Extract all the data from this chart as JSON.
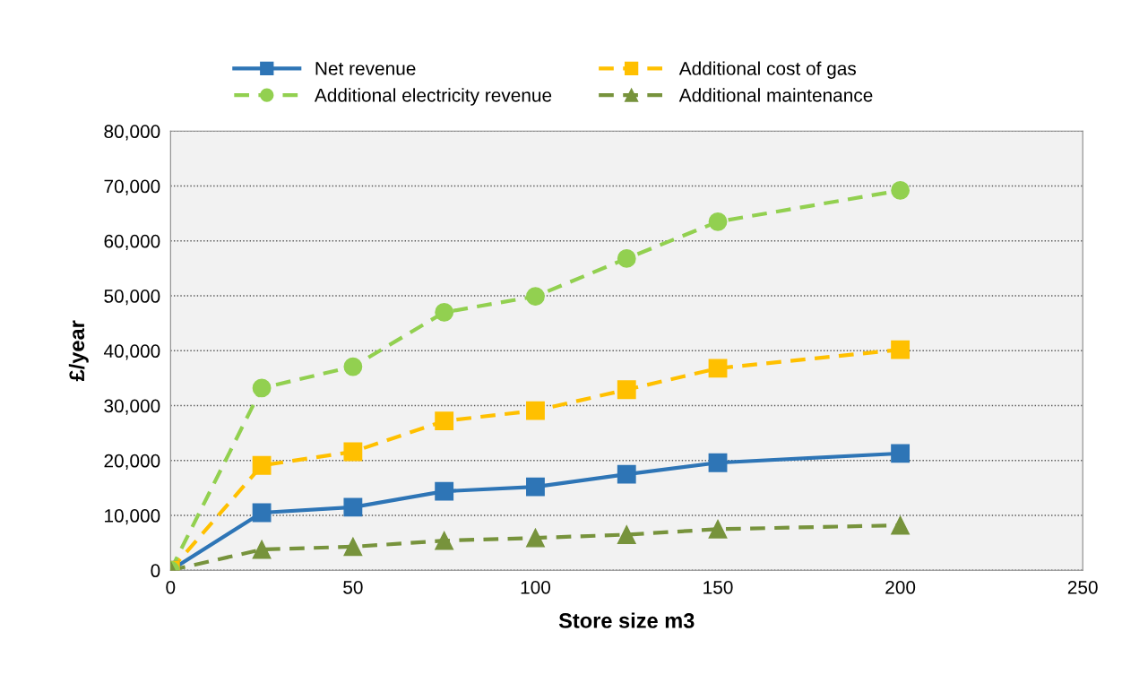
{
  "chart_data": {
    "type": "line",
    "xlabel": "Store size m3",
    "ylabel": "£/year",
    "xlim": [
      0,
      250
    ],
    "xticks": [
      0,
      50,
      100,
      150,
      200,
      250
    ],
    "ylim": [
      0,
      80000
    ],
    "yticks": [
      {
        "value": 0,
        "label": "0"
      },
      {
        "value": 10000,
        "label": "10,000"
      },
      {
        "value": 20000,
        "label": "20,000"
      },
      {
        "value": 30000,
        "label": "30,000"
      },
      {
        "value": 40000,
        "label": "40,000"
      },
      {
        "value": 50000,
        "label": "50,000"
      },
      {
        "value": 60000,
        "label": "60,000"
      },
      {
        "value": 70000,
        "label": "70,000"
      },
      {
        "value": 80000,
        "label": "80,000"
      }
    ],
    "grid": "y",
    "legend": "top",
    "x": [
      0,
      25,
      50,
      75,
      100,
      125,
      150,
      200
    ],
    "series": [
      {
        "name": "Net revenue",
        "color": "#2e75b6",
        "marker": "square",
        "line_style": "solid",
        "values": [
          0,
          10500,
          11500,
          14400,
          15200,
          17500,
          19600,
          21300
        ]
      },
      {
        "name": "Additional cost of gas",
        "color": "#ffc000",
        "marker": "square",
        "line_style": "dashed",
        "values": [
          0,
          19100,
          21600,
          27200,
          29100,
          32900,
          36800,
          40200
        ]
      },
      {
        "name": "Additional electricity revenue",
        "color": "#92d050",
        "marker": "circle",
        "line_style": "dashed",
        "values": [
          0,
          33200,
          37100,
          47000,
          49900,
          56800,
          63500,
          69200
        ]
      },
      {
        "name": "Additional maintenance",
        "color": "#77933c",
        "marker": "triangle",
        "line_style": "dashed",
        "values": [
          0,
          3800,
          4300,
          5400,
          5900,
          6500,
          7500,
          8200
        ]
      }
    ]
  }
}
